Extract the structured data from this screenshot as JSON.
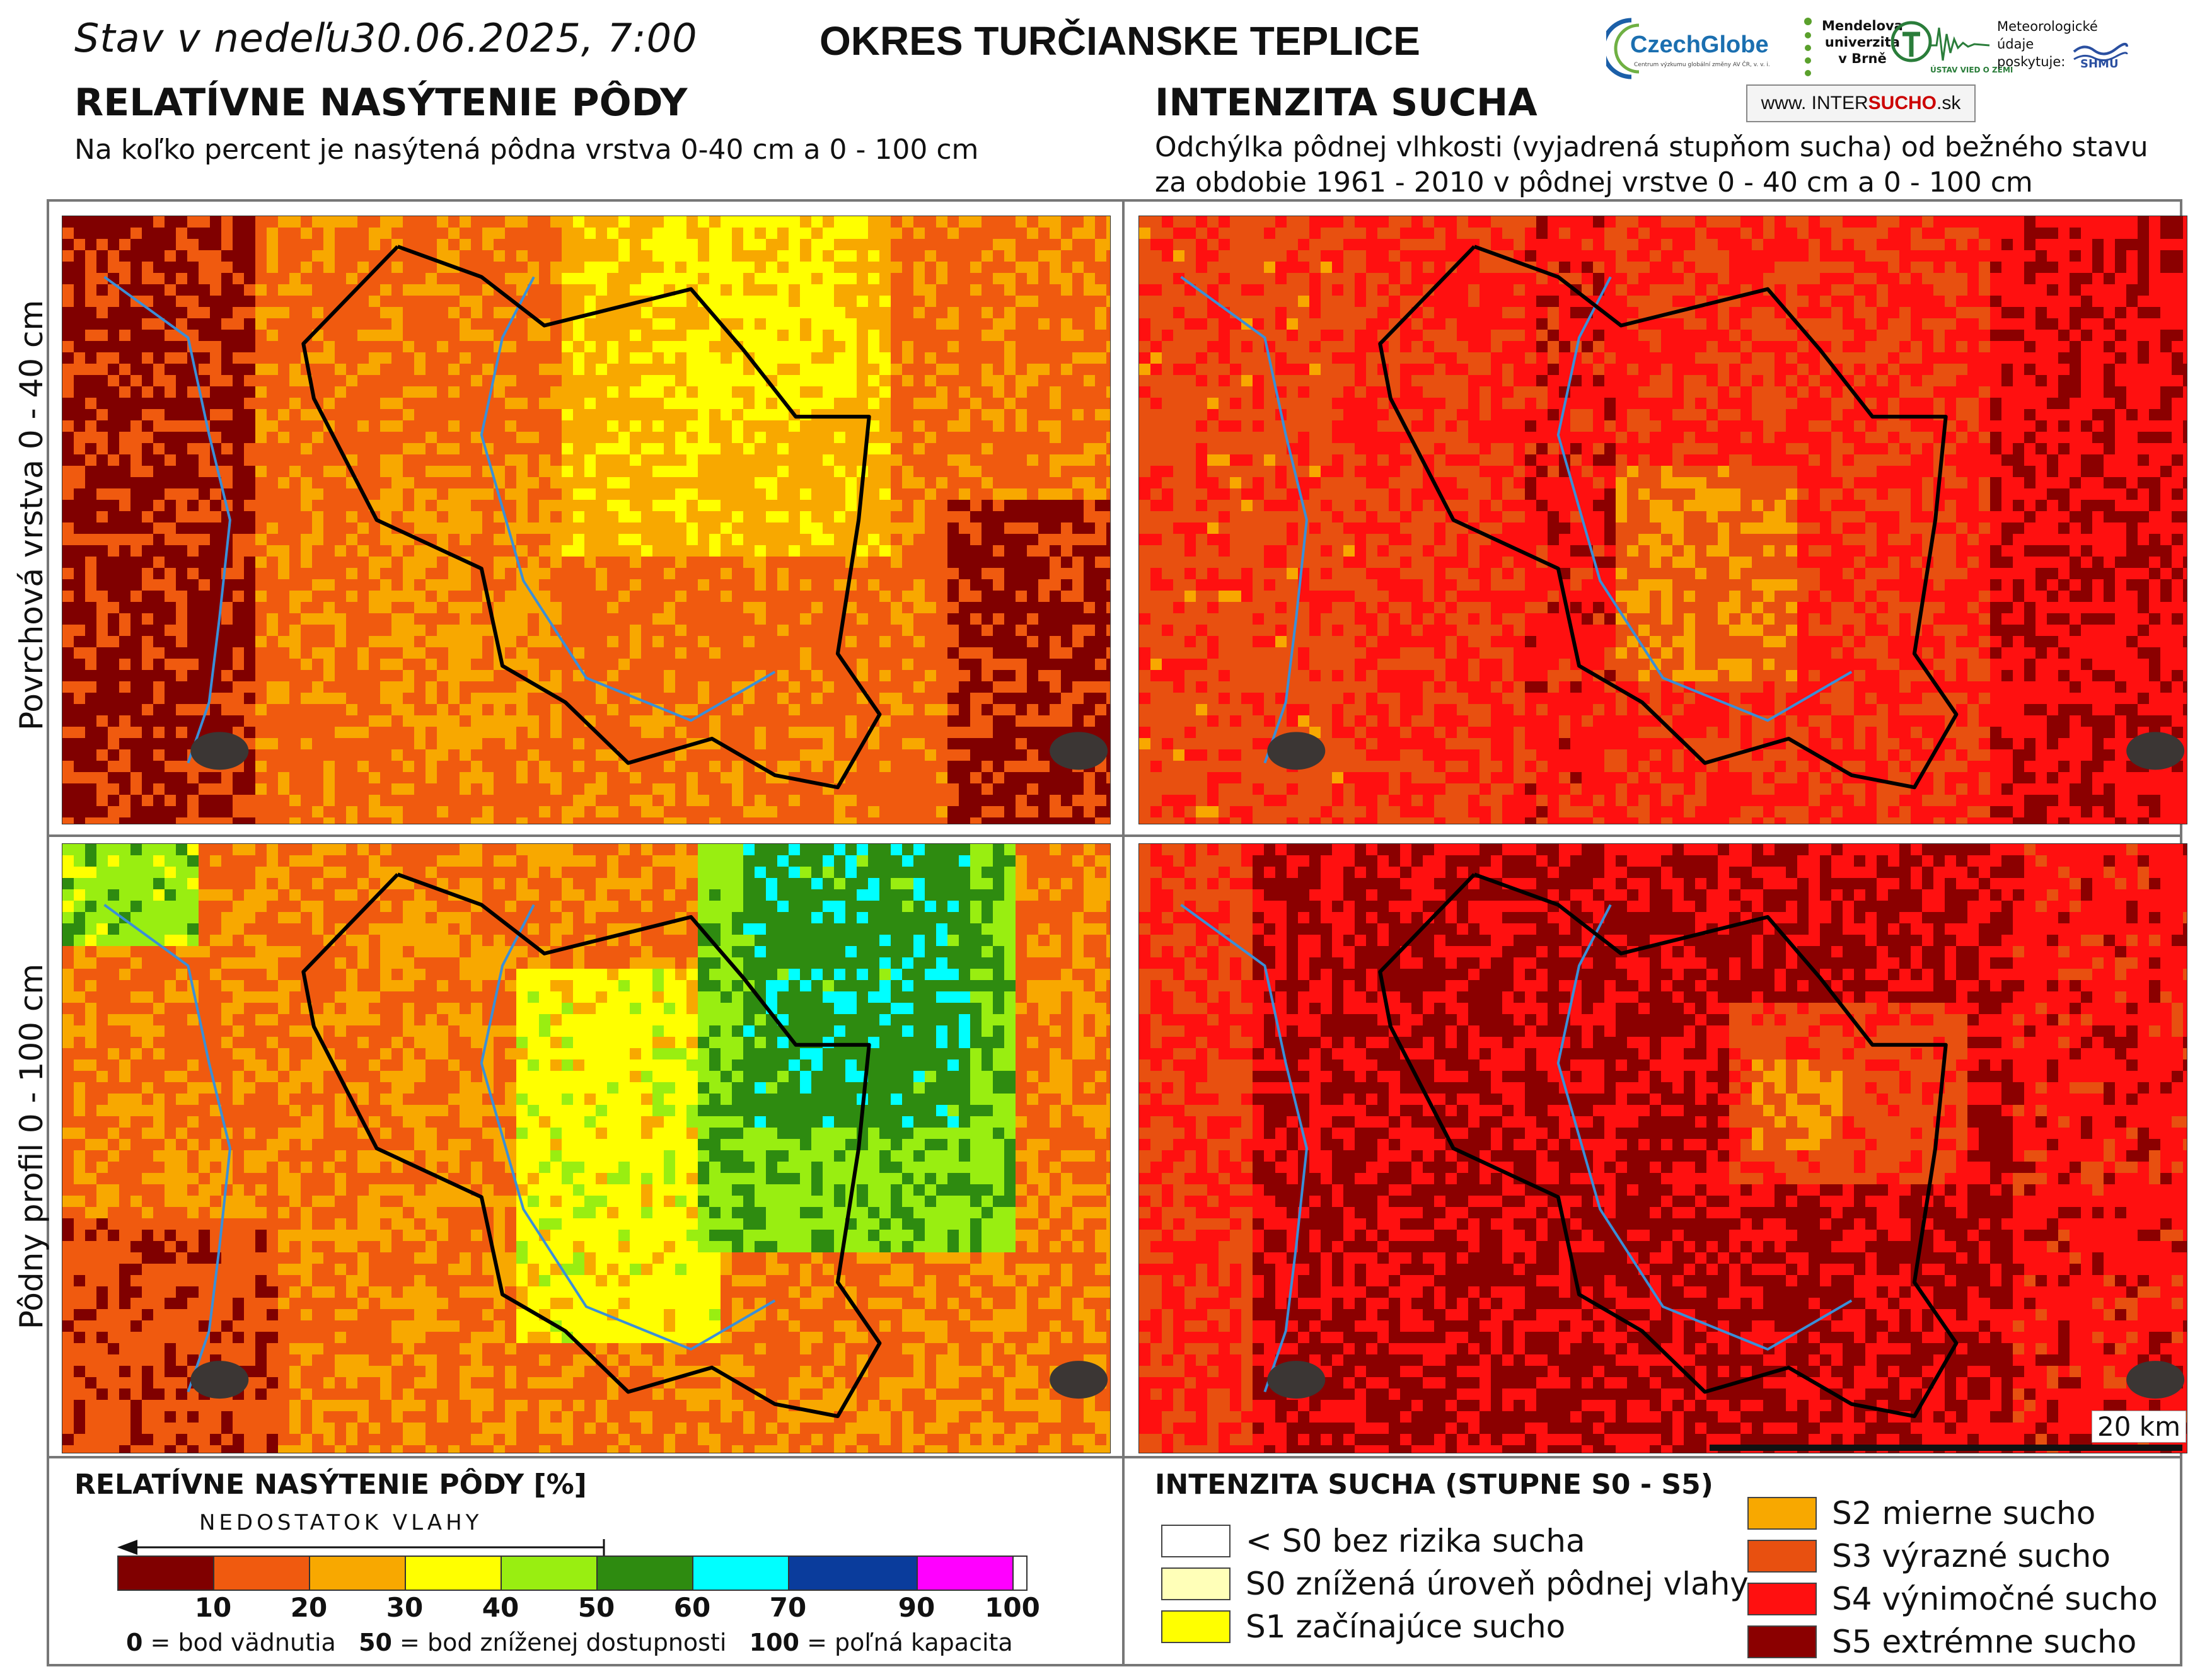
{
  "header": {
    "date_label": "Stav v nedeľu",
    "date_value": "30.06.2025, 7:00",
    "district": "OKRES  TURČIANSKE TEPLICE"
  },
  "left": {
    "title": "RELATÍVNE NASÝTENIE PÔDY",
    "subtitle": "Na koľko percent je nasýtená pôdna vrstva 0-40 cm a 0 - 100 cm"
  },
  "right": {
    "title": "INTENZITA SUCHA",
    "subtitle_line1": "Odchýlka pôdnej vlhkosti (vyjadrená stupňom sucha) od bežného stavu",
    "subtitle_line2": "za obdobie 1961 - 2010 v pôdnej vrstve 0 - 40 cm a 0 - 100 cm"
  },
  "row_labels": {
    "top": "Povrchová vrstva 0 - 40 cm",
    "bottom": "Pôdny profil 0 - 100 cm"
  },
  "logos": {
    "czechglobe": "CzechGlobe",
    "czechglobe_sub": "Centrum výzkumu globální změny AV ČR, v. v. i.",
    "mendel_1": "Mendelova",
    "mendel_2": "univerzita",
    "mendel_3": "v Brně",
    "ustav": "ÚSTAV VIED O ZEMI",
    "shmu_1": "Meteorologické",
    "shmu_2": "údaje",
    "shmu_3": "poskytuje:",
    "shmu_logo": "SHMÚ",
    "intersucho_prefix": "www. INTER",
    "intersucho_bold": "SUCHO",
    "intersucho_suffix": ".sk"
  },
  "scale": {
    "label": "20 km"
  },
  "legend_left": {
    "title": "RELATÍVNE NASÝTENIE PÔDY [%]",
    "arrow_text": "NEDOSTATOK VLAHY",
    "ticks": [
      "10",
      "20",
      "30",
      "40",
      "50",
      "60",
      "70",
      "90",
      "100"
    ],
    "colors": [
      "#800000",
      "#f05a0f",
      "#f8a800",
      "#ffff00",
      "#99ee11",
      "#2e8b10",
      "#00ffff",
      "#0a3c9c",
      "#ff00ff"
    ],
    "note_0_bold": "0",
    "note_0": " = bod vädnutia   ",
    "note_50_bold": "50",
    "note_50": " = bod zníženej dostupnosti   ",
    "note_100_bold": "100",
    "note_100": " = poľná kapacita"
  },
  "legend_right": {
    "title": "INTENZITA SUCHA (STUPNE S0 - S5)",
    "items": [
      {
        "label": "< S0 bez rizika sucha",
        "color": "#ffffff"
      },
      {
        "label": "S0 znížená úroveň pôdnej vlahy",
        "color": "#ffffb8"
      },
      {
        "label": "S1 začínajúce sucho",
        "color": "#ffff00"
      },
      {
        "label": "S2 mierne sucho",
        "color": "#f8a800"
      },
      {
        "label": "S3 výrazné sucho",
        "color": "#e85010"
      },
      {
        "label": "S4 výnimočné sucho",
        "color": "#ff1010"
      },
      {
        "label": "S5 extrémne sucho",
        "color": "#8b0000"
      }
    ]
  }
}
